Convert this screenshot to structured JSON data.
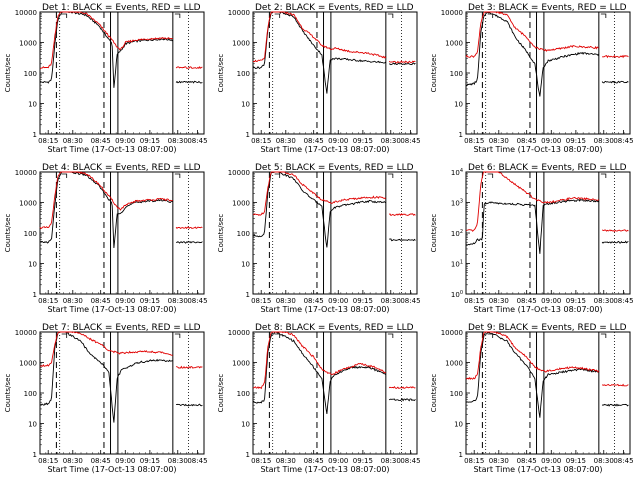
{
  "chart_data": [
    {
      "type": "line",
      "det": "1",
      "title": "Det 1: BLACK = Events, RED = LLD",
      "ylabel": "Counts/sec",
      "ylim": [
        1,
        10000
      ],
      "ylabel_style": "plain",
      "xlabel": "Start Time (17-Oct-13 08:07:00)",
      "red": [
        [
          0,
          150
        ],
        [
          0.05,
          150
        ],
        [
          0.07,
          200
        ],
        [
          0.09,
          1500
        ],
        [
          0.11,
          8000
        ],
        [
          0.14,
          12000
        ],
        [
          0.28,
          9000
        ],
        [
          0.36,
          4000
        ],
        [
          0.44,
          1200
        ],
        [
          0.47,
          700
        ],
        [
          0.49,
          600
        ],
        [
          0.5,
          650
        ],
        [
          0.52,
          1000
        ],
        [
          0.58,
          1200
        ],
        [
          0.65,
          1300
        ],
        [
          0.75,
          1400
        ],
        [
          0.82,
          1300
        ],
        [
          0.85,
          1100
        ]
      ],
      "black": [
        [
          0,
          50
        ],
        [
          0.05,
          50
        ],
        [
          0.07,
          60
        ],
        [
          0.09,
          800
        ],
        [
          0.11,
          6000
        ],
        [
          0.14,
          11000
        ],
        [
          0.28,
          8000
        ],
        [
          0.36,
          3500
        ],
        [
          0.44,
          900
        ],
        [
          0.45,
          30
        ],
        [
          0.47,
          400
        ],
        [
          0.5,
          600
        ],
        [
          0.52,
          900
        ],
        [
          0.58,
          1100
        ],
        [
          0.65,
          1200
        ],
        [
          0.75,
          1300
        ],
        [
          0.82,
          1200
        ],
        [
          0.85,
          1000
        ]
      ],
      "red_right": 150,
      "black_right": 50
    },
    {
      "type": "line",
      "det": "2",
      "title": "Det 2: BLACK = Events, RED = LLD",
      "ylabel": "Counts/sec",
      "ylim": [
        1,
        10000
      ],
      "ylabel_style": "plain",
      "xlabel": "Start Time (17-Oct-13 08:07:00)",
      "red": [
        [
          0,
          250
        ],
        [
          0.05,
          250
        ],
        [
          0.07,
          300
        ],
        [
          0.09,
          3000
        ],
        [
          0.11,
          10000
        ],
        [
          0.14,
          12000
        ],
        [
          0.25,
          8000
        ],
        [
          0.3,
          3000
        ],
        [
          0.37,
          1500
        ],
        [
          0.42,
          800
        ],
        [
          0.48,
          600
        ],
        [
          0.5,
          650
        ],
        [
          0.6,
          500
        ],
        [
          0.7,
          450
        ],
        [
          0.8,
          330
        ],
        [
          0.85,
          260
        ]
      ],
      "black": [
        [
          0,
          150
        ],
        [
          0.05,
          150
        ],
        [
          0.07,
          200
        ],
        [
          0.09,
          2500
        ],
        [
          0.11,
          9000
        ],
        [
          0.14,
          11000
        ],
        [
          0.25,
          7000
        ],
        [
          0.3,
          2500
        ],
        [
          0.37,
          800
        ],
        [
          0.42,
          400
        ],
        [
          0.45,
          20
        ],
        [
          0.47,
          280
        ],
        [
          0.5,
          300
        ],
        [
          0.6,
          270
        ],
        [
          0.7,
          240
        ],
        [
          0.8,
          220
        ],
        [
          0.85,
          200
        ]
      ],
      "red_right": 230,
      "black_right": 200
    },
    {
      "type": "line",
      "det": "3",
      "title": "Det 3: BLACK = Events, RED = LLD",
      "ylabel": "Counts/sec",
      "ylim": [
        1,
        10000
      ],
      "ylabel_style": "plain",
      "xlabel": "Start Time (17-Oct-13 08:07:00)",
      "red": [
        [
          0,
          350
        ],
        [
          0.05,
          350
        ],
        [
          0.07,
          500
        ],
        [
          0.09,
          4000
        ],
        [
          0.11,
          10000
        ],
        [
          0.14,
          12000
        ],
        [
          0.25,
          8000
        ],
        [
          0.3,
          3000
        ],
        [
          0.37,
          1500
        ],
        [
          0.42,
          700
        ],
        [
          0.48,
          550
        ],
        [
          0.55,
          600
        ],
        [
          0.65,
          750
        ],
        [
          0.75,
          700
        ],
        [
          0.85,
          650
        ]
      ],
      "black": [
        [
          0,
          40
        ],
        [
          0.05,
          45
        ],
        [
          0.07,
          60
        ],
        [
          0.09,
          2000
        ],
        [
          0.11,
          8000
        ],
        [
          0.14,
          10000
        ],
        [
          0.25,
          5000
        ],
        [
          0.3,
          1500
        ],
        [
          0.37,
          500
        ],
        [
          0.42,
          200
        ],
        [
          0.45,
          15
        ],
        [
          0.47,
          150
        ],
        [
          0.5,
          250
        ],
        [
          0.6,
          350
        ],
        [
          0.7,
          450
        ],
        [
          0.8,
          400
        ],
        [
          0.85,
          350
        ]
      ],
      "red_right": 350,
      "black_right": 50
    },
    {
      "type": "line",
      "det": "4",
      "title": "Det 4: BLACK = Events, RED = LLD",
      "ylabel": "Counts/sec",
      "ylim": [
        1,
        10000
      ],
      "ylabel_style": "plain",
      "xlabel": "Start Time (17-Oct-13 08:07:00)",
      "red": [
        [
          0,
          150
        ],
        [
          0.05,
          150
        ],
        [
          0.07,
          200
        ],
        [
          0.09,
          1500
        ],
        [
          0.11,
          8000
        ],
        [
          0.14,
          12000
        ],
        [
          0.28,
          9000
        ],
        [
          0.36,
          4000
        ],
        [
          0.44,
          1200
        ],
        [
          0.47,
          700
        ],
        [
          0.49,
          600
        ],
        [
          0.5,
          650
        ],
        [
          0.52,
          800
        ],
        [
          0.58,
          1100
        ],
        [
          0.65,
          1200
        ],
        [
          0.75,
          1300
        ],
        [
          0.82,
          1100
        ],
        [
          0.85,
          900
        ]
      ],
      "black": [
        [
          0,
          50
        ],
        [
          0.05,
          50
        ],
        [
          0.07,
          60
        ],
        [
          0.09,
          800
        ],
        [
          0.11,
          6000
        ],
        [
          0.14,
          11000
        ],
        [
          0.28,
          8000
        ],
        [
          0.36,
          3500
        ],
        [
          0.44,
          900
        ],
        [
          0.45,
          30
        ],
        [
          0.47,
          400
        ],
        [
          0.5,
          500
        ],
        [
          0.52,
          700
        ],
        [
          0.58,
          1000
        ],
        [
          0.65,
          1100
        ],
        [
          0.75,
          1200
        ],
        [
          0.82,
          1000
        ],
        [
          0.85,
          800
        ]
      ],
      "red_right": 150,
      "black_right": 50
    },
    {
      "type": "line",
      "det": "5",
      "title": "Det 5: BLACK = Events, RED = LLD",
      "ylabel": "Counts/sec",
      "ylim": [
        1,
        10000
      ],
      "ylabel_style": "plain",
      "xlabel": "Start Time (17-Oct-13 08:07:00)",
      "red": [
        [
          0,
          400
        ],
        [
          0.05,
          400
        ],
        [
          0.07,
          500
        ],
        [
          0.09,
          3000
        ],
        [
          0.11,
          10000
        ],
        [
          0.14,
          12000
        ],
        [
          0.25,
          8000
        ],
        [
          0.3,
          4000
        ],
        [
          0.37,
          2000
        ],
        [
          0.42,
          1200
        ],
        [
          0.48,
          1000
        ],
        [
          0.55,
          1200
        ],
        [
          0.65,
          1400
        ],
        [
          0.75,
          1500
        ],
        [
          0.85,
          1300
        ]
      ],
      "black": [
        [
          0,
          80
        ],
        [
          0.05,
          80
        ],
        [
          0.07,
          100
        ],
        [
          0.09,
          2000
        ],
        [
          0.11,
          9000
        ],
        [
          0.14,
          11000
        ],
        [
          0.25,
          6000
        ],
        [
          0.3,
          2500
        ],
        [
          0.37,
          1200
        ],
        [
          0.42,
          800
        ],
        [
          0.45,
          30
        ],
        [
          0.47,
          500
        ],
        [
          0.5,
          700
        ],
        [
          0.6,
          900
        ],
        [
          0.7,
          1100
        ],
        [
          0.8,
          1000
        ],
        [
          0.85,
          900
        ]
      ],
      "red_right": 400,
      "black_right": 60
    },
    {
      "type": "line",
      "det": "6",
      "title": "Det 6: BLACK = Events, RED = LLD",
      "ylabel": "Counts/sec",
      "ylim": [
        1,
        10000
      ],
      "ylabel_style": "power",
      "xlabel": "Start Time (17-Oct-13 08:07:00)",
      "red": [
        [
          0,
          120
        ],
        [
          0.05,
          120
        ],
        [
          0.07,
          200
        ],
        [
          0.09,
          4000
        ],
        [
          0.11,
          12000
        ],
        [
          0.14,
          14000
        ],
        [
          0.2,
          10000
        ],
        [
          0.27,
          5000
        ],
        [
          0.35,
          2500
        ],
        [
          0.42,
          1300
        ],
        [
          0.48,
          1000
        ],
        [
          0.55,
          1100
        ],
        [
          0.65,
          1400
        ],
        [
          0.75,
          1300
        ],
        [
          0.85,
          1100
        ]
      ],
      "black": [
        [
          0,
          40
        ],
        [
          0.05,
          45
        ],
        [
          0.07,
          60
        ],
        [
          0.1,
          60
        ],
        [
          0.11,
          900
        ],
        [
          0.14,
          1000
        ],
        [
          0.2,
          950
        ],
        [
          0.27,
          900
        ],
        [
          0.35,
          850
        ],
        [
          0.42,
          800
        ],
        [
          0.45,
          20
        ],
        [
          0.47,
          800
        ],
        [
          0.5,
          900
        ],
        [
          0.6,
          1100
        ],
        [
          0.7,
          1200
        ],
        [
          0.8,
          1100
        ],
        [
          0.85,
          1000
        ]
      ],
      "red_right": 120,
      "black_right": 50
    },
    {
      "type": "line",
      "det": "7",
      "title": "Det 7: BLACK = Events, RED = LLD",
      "ylabel": "Counts/sec",
      "ylim": [
        1,
        10000
      ],
      "ylabel_style": "plain",
      "xlabel": "Start Time (17-Oct-13 08:07:00)",
      "red": [
        [
          0,
          800
        ],
        [
          0.05,
          800
        ],
        [
          0.07,
          1000
        ],
        [
          0.09,
          4000
        ],
        [
          0.11,
          10000
        ],
        [
          0.14,
          12000
        ],
        [
          0.25,
          9000
        ],
        [
          0.3,
          6000
        ],
        [
          0.37,
          4000
        ],
        [
          0.42,
          2500
        ],
        [
          0.48,
          2000
        ],
        [
          0.55,
          2200
        ],
        [
          0.65,
          2300
        ],
        [
          0.75,
          2100
        ],
        [
          0.85,
          1600
        ]
      ],
      "black": [
        [
          0,
          40
        ],
        [
          0.05,
          45
        ],
        [
          0.07,
          60
        ],
        [
          0.09,
          3000
        ],
        [
          0.11,
          9000
        ],
        [
          0.14,
          11000
        ],
        [
          0.25,
          5000
        ],
        [
          0.3,
          2000
        ],
        [
          0.37,
          1000
        ],
        [
          0.42,
          500
        ],
        [
          0.45,
          10
        ],
        [
          0.47,
          300
        ],
        [
          0.5,
          600
        ],
        [
          0.6,
          1000
        ],
        [
          0.7,
          1200
        ],
        [
          0.8,
          1100
        ],
        [
          0.85,
          1000
        ]
      ],
      "red_right": 700,
      "black_right": 40
    },
    {
      "type": "line",
      "det": "8",
      "title": "Det 8: BLACK = Events, RED = LLD",
      "ylabel": "Counts/sec",
      "ylim": [
        1,
        10000
      ],
      "ylabel_style": "plain",
      "xlabel": "Start Time (17-Oct-13 08:07:00)",
      "red": [
        [
          0,
          150
        ],
        [
          0.05,
          150
        ],
        [
          0.07,
          200
        ],
        [
          0.09,
          3000
        ],
        [
          0.11,
          10000
        ],
        [
          0.14,
          12000
        ],
        [
          0.25,
          8000
        ],
        [
          0.3,
          3500
        ],
        [
          0.37,
          1500
        ],
        [
          0.42,
          600
        ],
        [
          0.48,
          400
        ],
        [
          0.55,
          600
        ],
        [
          0.65,
          900
        ],
        [
          0.75,
          700
        ],
        [
          0.85,
          350
        ]
      ],
      "black": [
        [
          0,
          50
        ],
        [
          0.05,
          50
        ],
        [
          0.07,
          60
        ],
        [
          0.09,
          2000
        ],
        [
          0.11,
          8000
        ],
        [
          0.14,
          10000
        ],
        [
          0.25,
          5000
        ],
        [
          0.3,
          2000
        ],
        [
          0.37,
          700
        ],
        [
          0.42,
          300
        ],
        [
          0.45,
          20
        ],
        [
          0.47,
          250
        ],
        [
          0.5,
          400
        ],
        [
          0.6,
          700
        ],
        [
          0.7,
          700
        ],
        [
          0.8,
          450
        ],
        [
          0.85,
          300
        ]
      ],
      "red_right": 150,
      "black_right": 60
    },
    {
      "type": "line",
      "det": "9",
      "title": "Det 9: BLACK = Events, RED = LLD",
      "ylabel": "Counts/sec",
      "ylim": [
        1,
        10000
      ],
      "ylabel_style": "plain",
      "xlabel": "Start Time (17-Oct-13 08:07:00)",
      "red": [
        [
          0,
          300
        ],
        [
          0.05,
          300
        ],
        [
          0.07,
          400
        ],
        [
          0.09,
          3000
        ],
        [
          0.11,
          10000
        ],
        [
          0.14,
          12000
        ],
        [
          0.25,
          7000
        ],
        [
          0.3,
          3000
        ],
        [
          0.37,
          1500
        ],
        [
          0.42,
          700
        ],
        [
          0.48,
          500
        ],
        [
          0.55,
          600
        ],
        [
          0.65,
          700
        ],
        [
          0.75,
          600
        ],
        [
          0.85,
          450
        ]
      ],
      "black": [
        [
          0,
          50
        ],
        [
          0.05,
          55
        ],
        [
          0.07,
          70
        ],
        [
          0.09,
          2000
        ],
        [
          0.11,
          8000
        ],
        [
          0.14,
          10000
        ],
        [
          0.25,
          5000
        ],
        [
          0.3,
          2000
        ],
        [
          0.37,
          800
        ],
        [
          0.42,
          300
        ],
        [
          0.45,
          15
        ],
        [
          0.47,
          250
        ],
        [
          0.5,
          400
        ],
        [
          0.6,
          500
        ],
        [
          0.7,
          600
        ],
        [
          0.8,
          500
        ],
        [
          0.85,
          400
        ]
      ],
      "red_right": 180,
      "black_right": 40
    }
  ],
  "xticks": [
    "08:15",
    "08:30",
    "08:45",
    "09:00",
    "09:15",
    "08:30",
    "08:45"
  ],
  "yticks_plain": [
    "1",
    "10",
    "100",
    "1000",
    "10000"
  ],
  "yticks_power": [
    "10^0",
    "10^1",
    "10^2",
    "10^3",
    "10^4"
  ]
}
